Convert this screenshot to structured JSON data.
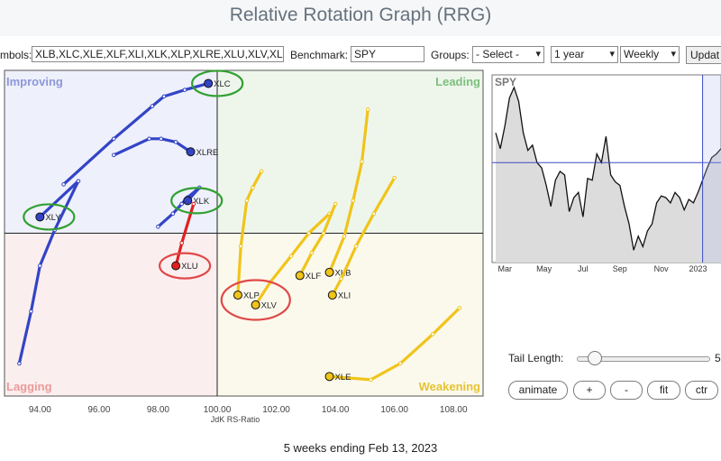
{
  "title": "Relative Rotation Graph (RRG)",
  "controls": {
    "symbols_label": "mbols:",
    "symbols_value": "XLB,XLC,XLE,XLF,XLI,XLK,XLP,XLRE,XLU,XLV,XL",
    "benchmark_label": "Benchmark:",
    "benchmark_value": "SPY",
    "groups_label": "Groups:",
    "groups_selected": "- Select -",
    "period_selected": "1 year",
    "frequency_selected": "Weekly",
    "update_label": "Updat"
  },
  "tail": {
    "label": "Tail Length:",
    "value": "5",
    "fraction": 0.1
  },
  "buttons": {
    "animate": "animate",
    "plus": "+",
    "minus": "-",
    "fit": "fit",
    "ctr": "ctr"
  },
  "footer": "5 weeks ending Feb 13, 2023",
  "colors": {
    "improving": "#eef0fb",
    "leading": "#eef6ec",
    "lagging": "#fbeeee",
    "weakening": "#fbf9ec",
    "blue": "#3344c6",
    "gold": "#f0c419",
    "red": "#e02020",
    "circle_green": "#30a030",
    "circle_red": "#e04848"
  },
  "chart_data": [
    {
      "type": "scatter",
      "xlabel": "JdK RS-Ratio",
      "xlim": [
        92.8,
        109.0
      ],
      "ylim": [
        95.0,
        105.0
      ],
      "xticks": [
        "94.00",
        "96.00",
        "98.00",
        "100.00",
        "102.00",
        "104.00",
        "106.00",
        "108.00"
      ],
      "xtick_values": [
        94,
        96,
        98,
        100,
        102,
        104,
        106,
        108
      ],
      "quadrants": {
        "top_left": "Improving",
        "top_right": "Leading",
        "bottom_left": "Lagging",
        "bottom_right": "Weakening"
      },
      "grid": false,
      "series": [
        {
          "name": "XLC",
          "color": "blue",
          "points": [
            [
              94.8,
              101.5
            ],
            [
              96.5,
              102.9
            ],
            [
              97.8,
              103.9
            ],
            [
              98.2,
              104.2
            ],
            [
              98.9,
              104.4
            ],
            [
              99.7,
              104.6
            ]
          ]
        },
        {
          "name": "XLRE",
          "color": "blue",
          "points": [
            [
              96.5,
              102.4
            ],
            [
              97.7,
              102.9
            ],
            [
              98.1,
              102.9
            ],
            [
              98.6,
              102.8
            ],
            [
              99.1,
              102.5
            ]
          ]
        },
        {
          "name": "XLY",
          "color": "blue",
          "points": [
            [
              93.3,
              96.0
            ],
            [
              93.7,
              97.6
            ],
            [
              94.0,
              99.0
            ],
            [
              94.5,
              100.1
            ],
            [
              95.3,
              101.6
            ],
            [
              94.0,
              100.5
            ]
          ]
        },
        {
          "name": "XLK",
          "color": "blue",
          "points": [
            [
              98.0,
              100.2
            ],
            [
              98.5,
              100.6
            ],
            [
              98.8,
              100.9
            ],
            [
              99.0,
              101.1
            ],
            [
              99.4,
              101.4
            ],
            [
              99.0,
              101.0
            ]
          ]
        },
        {
          "name": "XLU",
          "color": "red",
          "points": [
            [
              99.2,
              100.9
            ],
            [
              98.8,
              99.7
            ],
            [
              98.6,
              99.0
            ]
          ]
        },
        {
          "name": "XLP",
          "color": "gold",
          "points": [
            [
              101.5,
              101.9
            ],
            [
              101.2,
              101.4
            ],
            [
              101.0,
              101.0
            ],
            [
              100.8,
              99.6
            ],
            [
              100.7,
              98.1
            ]
          ]
        },
        {
          "name": "XLV",
          "color": "gold",
          "points": [
            [
              103.8,
              100.6
            ],
            [
              103.1,
              100.0
            ],
            [
              102.5,
              99.3
            ],
            [
              101.8,
              98.5
            ],
            [
              101.3,
              97.8
            ]
          ]
        },
        {
          "name": "XLF",
          "color": "gold",
          "points": [
            [
              104.0,
              100.9
            ],
            [
              103.6,
              100.0
            ],
            [
              103.2,
              99.4
            ],
            [
              102.8,
              98.7
            ]
          ]
        },
        {
          "name": "XLB",
          "color": "gold",
          "points": [
            [
              105.1,
              103.8
            ],
            [
              104.9,
              102.2
            ],
            [
              104.6,
              101.0
            ],
            [
              104.3,
              99.9
            ],
            [
              103.8,
              98.8
            ]
          ]
        },
        {
          "name": "XLI",
          "color": "gold",
          "points": [
            [
              106.0,
              101.7
            ],
            [
              105.3,
              100.6
            ],
            [
              104.7,
              99.6
            ],
            [
              104.2,
              98.6
            ],
            [
              103.9,
              98.1
            ]
          ]
        },
        {
          "name": "XLE",
          "color": "gold",
          "points": [
            [
              108.2,
              97.7
            ],
            [
              107.3,
              96.9
            ],
            [
              106.2,
              96.0
            ],
            [
              105.2,
              95.5
            ],
            [
              103.8,
              95.6
            ]
          ]
        }
      ],
      "highlight_circles": [
        {
          "around": "XLC",
          "color": "circle_green"
        },
        {
          "around": "XLY",
          "color": "circle_green"
        },
        {
          "around": "XLK",
          "color": "circle_green"
        },
        {
          "around": "XLU",
          "color": "circle_red"
        },
        {
          "around": "XLP+XLV",
          "color": "circle_red"
        }
      ]
    },
    {
      "type": "area",
      "title": "SPY",
      "xticks": [
        "Mar",
        "May",
        "Jul",
        "Sep",
        "Nov",
        "2023"
      ],
      "xtick_positions": [
        2,
        10.5,
        19,
        27,
        36,
        44
      ],
      "reference_level": 0.55,
      "values": [
        0.72,
        0.63,
        0.76,
        0.92,
        0.98,
        0.9,
        0.72,
        0.62,
        0.65,
        0.55,
        0.52,
        0.42,
        0.3,
        0.45,
        0.5,
        0.48,
        0.27,
        0.35,
        0.38,
        0.24,
        0.46,
        0.45,
        0.6,
        0.55,
        0.7,
        0.48,
        0.44,
        0.42,
        0.3,
        0.2,
        0.05,
        0.13,
        0.07,
        0.16,
        0.2,
        0.32,
        0.36,
        0.35,
        0.32,
        0.38,
        0.35,
        0.28,
        0.34,
        0.32,
        0.38,
        0.45,
        0.52,
        0.58,
        0.6,
        0.63
      ]
    }
  ]
}
